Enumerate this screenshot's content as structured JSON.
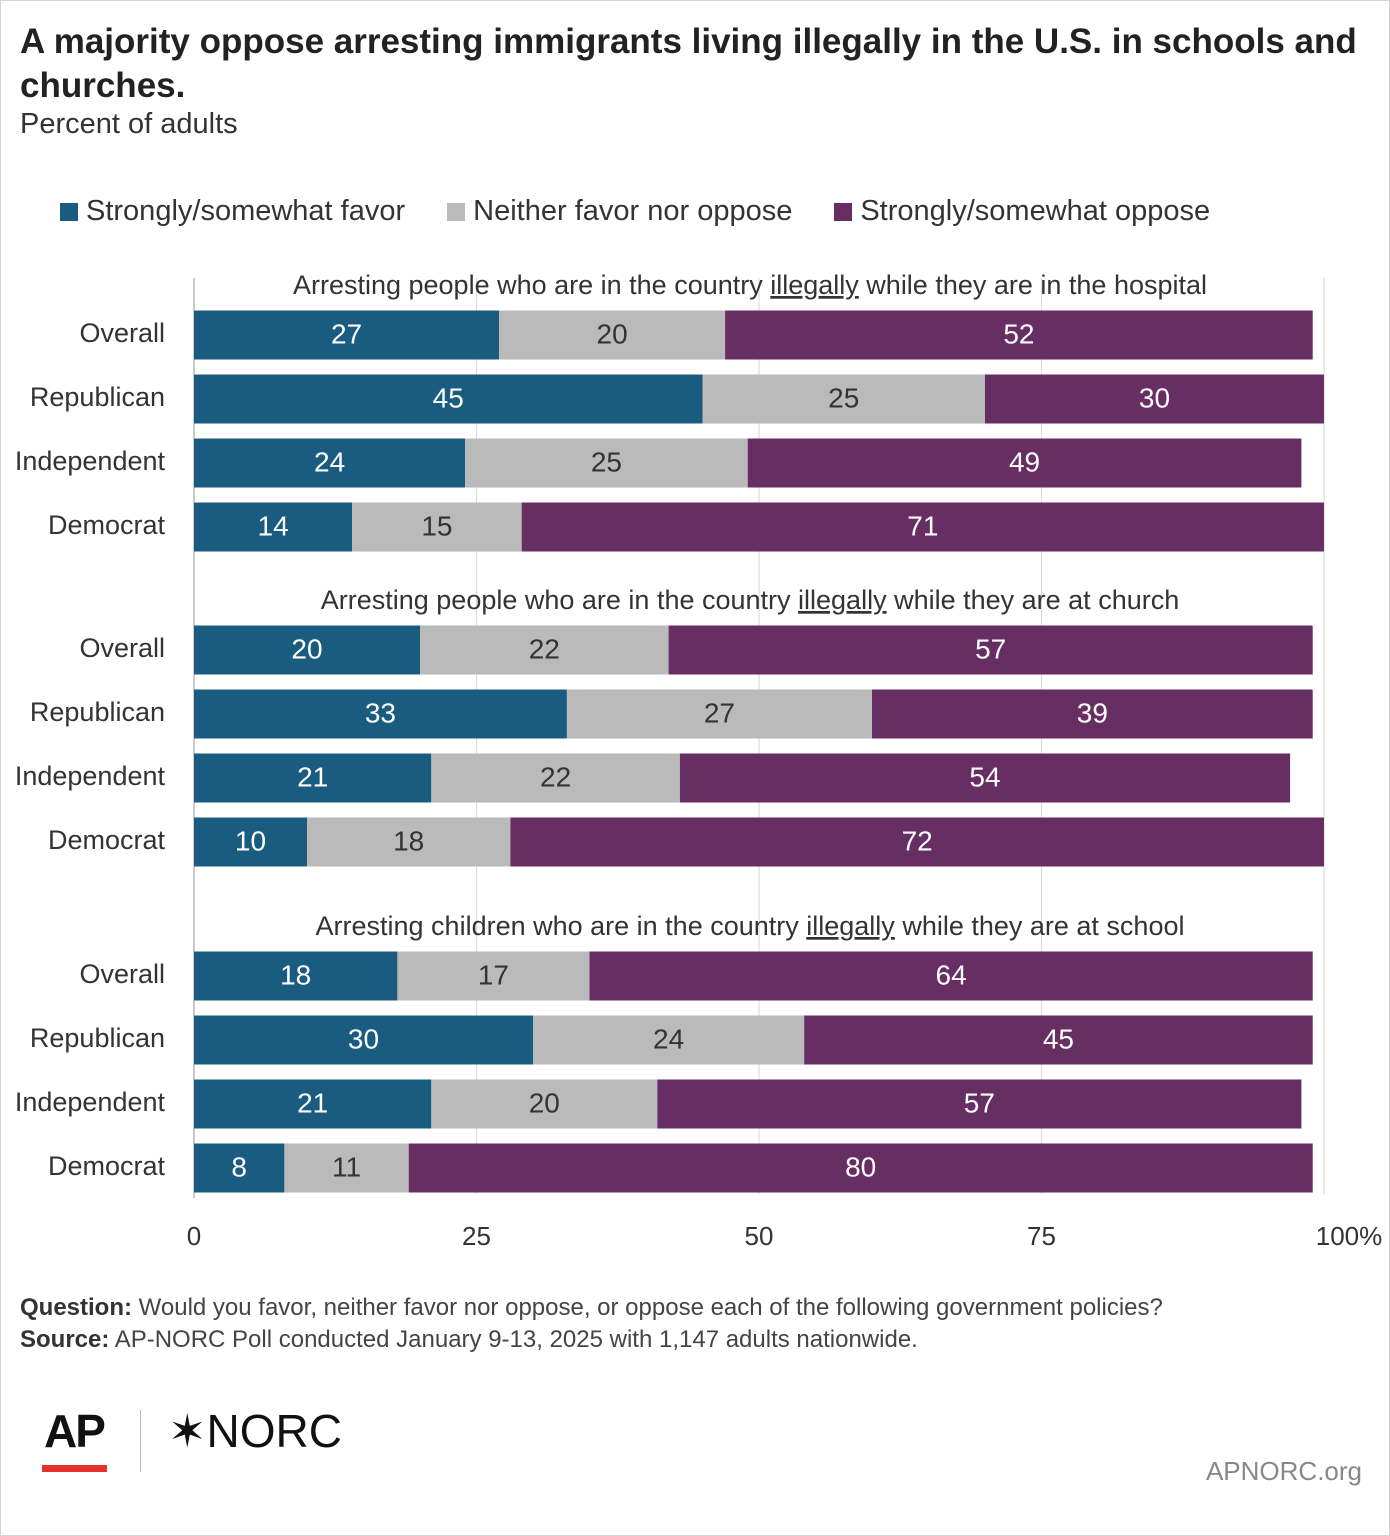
{
  "title": "A majority oppose arresting immigrants living illegally in the U.S. in schools and churches.",
  "subtitle": "Percent of adults",
  "legend": [
    {
      "label": "Strongly/somewhat favor",
      "color": "#1a5c80"
    },
    {
      "label": "Neither favor nor oppose",
      "color": "#bababa"
    },
    {
      "label": "Strongly/somewhat oppose",
      "color": "#662e63"
    }
  ],
  "chart_data": {
    "type": "bar",
    "orientation": "horizontal",
    "stacked": true,
    "xlim": [
      0,
      100
    ],
    "x_ticks": [
      "0",
      "25",
      "50",
      "75",
      "100"
    ],
    "x_unit": "%",
    "grid": true,
    "legend_position": "top",
    "series_names": [
      "Strongly/somewhat favor",
      "Neither favor nor oppose",
      "Strongly/somewhat oppose"
    ],
    "groups": [
      {
        "title": {
          "before": "Arresting people who are in the country ",
          "underlined": "illegally",
          "after": " while they are in the hospital"
        },
        "categories": [
          "Overall",
          "Republican",
          "Independent",
          "Democrat"
        ],
        "values": [
          [
            27,
            20,
            52
          ],
          [
            45,
            25,
            30
          ],
          [
            24,
            25,
            49
          ],
          [
            14,
            15,
            71
          ]
        ]
      },
      {
        "title": {
          "before": "Arresting people who are in the country ",
          "underlined": "illegally",
          "after": " while they are at church"
        },
        "categories": [
          "Overall",
          "Republican",
          "Independent",
          "Democrat"
        ],
        "values": [
          [
            20,
            22,
            57
          ],
          [
            33,
            27,
            39
          ],
          [
            21,
            22,
            54
          ],
          [
            10,
            18,
            72
          ]
        ]
      },
      {
        "title": {
          "before": "Arresting children who are in the country ",
          "underlined": "illegally",
          "after": " while they are at school"
        },
        "categories": [
          "Overall",
          "Republican",
          "Independent",
          "Democrat"
        ],
        "values": [
          [
            18,
            17,
            64
          ],
          [
            30,
            24,
            45
          ],
          [
            21,
            20,
            57
          ],
          [
            8,
            11,
            80
          ]
        ]
      }
    ]
  },
  "footer": {
    "question_label": "Question:",
    "question_text": " Would you favor, neither favor nor oppose, or oppose each of the following government policies?",
    "source_label": "Source:",
    "source_text": " AP-NORC Poll conducted January 9-13, 2025 with 1,147 adults nationwide."
  },
  "logos": {
    "ap": "AP",
    "norc": "✶NORC"
  },
  "site": "APNORC.org"
}
